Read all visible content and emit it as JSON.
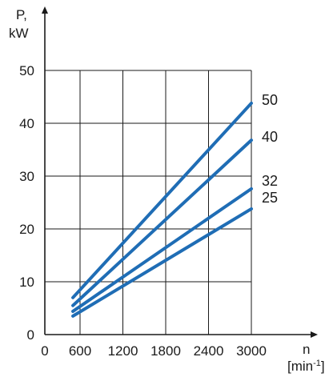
{
  "chart_data": {
    "type": "line",
    "ylabel_line1": "P,",
    "ylabel_line2": "kW",
    "xlabel_line1": "n",
    "xlabel_line2_pre": "[min",
    "xlabel_line2_sup": "-1",
    "xlabel_line2_post": "]",
    "x_ticks": [
      0,
      600,
      1200,
      1800,
      2400,
      3000
    ],
    "y_ticks": [
      0,
      10,
      20,
      30,
      40,
      50
    ],
    "xlim": [
      0,
      3000
    ],
    "ylim": [
      0,
      50
    ],
    "grid": true,
    "line_color": "#1f6db5",
    "series": [
      {
        "name": "50",
        "x": [
          500,
          3000
        ],
        "y": [
          7,
          43.8
        ]
      },
      {
        "name": "40",
        "x": [
          500,
          3000
        ],
        "y": [
          5.5,
          36.8
        ]
      },
      {
        "name": "32",
        "x": [
          500,
          3000
        ],
        "y": [
          4.4,
          27.6
        ]
      },
      {
        "name": "25",
        "x": [
          500,
          3000
        ],
        "y": [
          3.5,
          23.8
        ]
      }
    ]
  }
}
